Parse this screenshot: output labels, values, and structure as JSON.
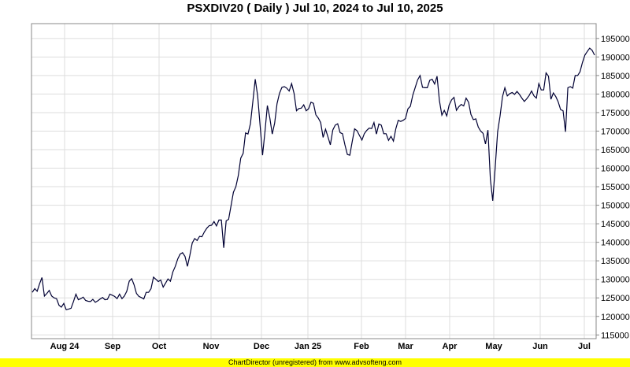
{
  "chart_data": {
    "type": "line",
    "title": "PSXDIV20 ( Daily ) Jul 10, 2024 to Jul 10, 2025",
    "x_labels": [
      "Aug 24",
      "Sep",
      "Oct",
      "Nov",
      "Dec",
      "Jan 25",
      "Feb",
      "Mar",
      "Apr",
      "May",
      "Jun",
      "Jul"
    ],
    "y_ticks": [
      115000,
      120000,
      125000,
      130000,
      135000,
      140000,
      145000,
      150000,
      155000,
      160000,
      165000,
      170000,
      175000,
      180000,
      185000,
      190000,
      195000
    ],
    "ylim": [
      114000,
      199000
    ],
    "grid": true,
    "line_color": "#000033",
    "series": [
      {
        "values": [
          126500,
          127500,
          126800,
          128800,
          130500,
          125500,
          126200,
          127000,
          125500,
          125000,
          124800,
          123000,
          122500,
          123500,
          121800,
          122000,
          122200,
          124000,
          126000,
          124500,
          124800,
          125200,
          124300,
          124100,
          124000,
          124600,
          123800,
          124200,
          124700,
          125100,
          124500,
          124600,
          126000,
          125700,
          125400,
          124800,
          126000,
          124800,
          125500,
          126800,
          129500,
          130200,
          128500,
          126200,
          125400,
          125100,
          124700,
          126500,
          126500,
          127500,
          130600,
          130000,
          129400,
          129800,
          127900,
          129000,
          130100,
          129500,
          132000,
          133500,
          135500,
          136800,
          137200,
          136200,
          133500,
          136400,
          139800,
          141000,
          140500,
          141600,
          141500,
          142800,
          143800,
          144500,
          144600,
          145600,
          144400,
          146000,
          146000,
          138500,
          145800,
          146200,
          149900,
          153500,
          155000,
          158000,
          162700,
          164000,
          169500,
          169200,
          172000,
          178000,
          184000,
          179500,
          171500,
          163500,
          169700,
          176900,
          173600,
          169200,
          172200,
          177400,
          180200,
          181800,
          182000,
          181600,
          180800,
          182800,
          180200,
          175500,
          176100,
          176200,
          177100,
          175500,
          176000,
          177800,
          177500,
          174400,
          173500,
          172300,
          168300,
          170500,
          168400,
          166300,
          170300,
          171600,
          172000,
          169600,
          169300,
          166300,
          163700,
          163500,
          167100,
          170600,
          170100,
          168800,
          167600,
          169300,
          170200,
          170800,
          170700,
          172300,
          169200,
          171900,
          171600,
          169300,
          169300,
          167500,
          168600,
          167300,
          170600,
          172900,
          172600,
          172900,
          173400,
          176000,
          176700,
          179700,
          181800,
          183800,
          185000,
          181800,
          181700,
          181700,
          183700,
          184000,
          182700,
          184800,
          178200,
          174300,
          175600,
          174100,
          177000,
          178400,
          179100,
          175600,
          176600,
          177200,
          176800,
          178900,
          177800,
          174500,
          173100,
          173300,
          171100,
          170000,
          169400,
          166500,
          170300,
          157000,
          151200,
          160100,
          169800,
          174100,
          179300,
          181700,
          179500,
          180100,
          180400,
          179900,
          180700,
          179900,
          178900,
          178000,
          178700,
          179600,
          180800,
          179500,
          178900,
          182800,
          181100,
          181100,
          185700,
          184800,
          178600,
          180300,
          179300,
          177900,
          175800,
          175500,
          169800,
          181700,
          182000,
          181600,
          185000,
          185000,
          186000,
          188500,
          190500,
          191500,
          192400,
          191800,
          190500
        ]
      }
    ]
  },
  "footer": {
    "text": "ChartDirector (unregistered) from www.advsofteng.com",
    "color": "#ffff00"
  }
}
